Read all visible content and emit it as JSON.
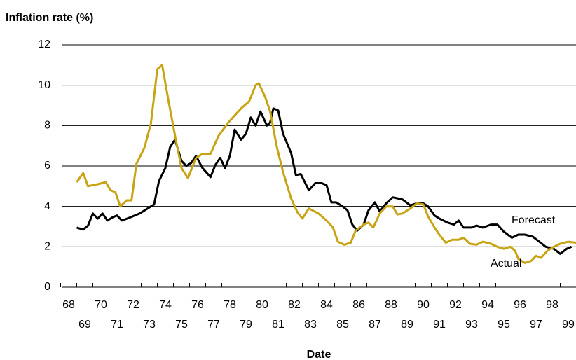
{
  "chart_data": {
    "type": "line",
    "title": "Inflation rate (%)",
    "x_label": "Date",
    "xlim": [
      68,
      100
    ],
    "ylim": [
      0,
      12
    ],
    "xticks": [
      68,
      69,
      70,
      71,
      72,
      73,
      74,
      75,
      76,
      77,
      78,
      79,
      80,
      81,
      82,
      83,
      84,
      85,
      86,
      87,
      88,
      89,
      90,
      91,
      92,
      93,
      94,
      95,
      96,
      97,
      98,
      99
    ],
    "yticks": [
      0,
      2,
      4,
      6,
      8,
      10,
      12
    ],
    "grid": true,
    "series": [
      {
        "name": "Forecast",
        "color": "#000000",
        "x": [
          69.0,
          69.4,
          69.7,
          70.0,
          70.3,
          70.6,
          70.9,
          71.2,
          71.5,
          71.8,
          72.3,
          72.9,
          73.4,
          73.8,
          74.1,
          74.5,
          74.8,
          75.1,
          75.5,
          75.8,
          76.1,
          76.4,
          76.8,
          77.3,
          77.6,
          77.9,
          78.2,
          78.5,
          78.8,
          79.2,
          79.5,
          79.8,
          80.1,
          80.4,
          80.8,
          81.0,
          81.2,
          81.5,
          81.8,
          82.3,
          82.6,
          82.9,
          83.4,
          83.8,
          84.2,
          84.5,
          84.8,
          85.1,
          85.5,
          85.8,
          86.1,
          86.4,
          86.8,
          87.1,
          87.5,
          87.8,
          88.2,
          88.6,
          88.9,
          89.2,
          89.7,
          90.1,
          90.5,
          90.8,
          91.2,
          91.5,
          92.0,
          92.4,
          92.7,
          93.0,
          93.5,
          93.8,
          94.2,
          94.7,
          95.1,
          95.5,
          96.0,
          96.4,
          96.8,
          97.3,
          97.7,
          98.1,
          98.6,
          99.0,
          99.4,
          99.7
        ],
        "values": [
          2.95,
          2.85,
          3.05,
          3.65,
          3.4,
          3.65,
          3.3,
          3.45,
          3.55,
          3.3,
          3.45,
          3.65,
          3.9,
          4.1,
          5.25,
          5.9,
          6.95,
          7.3,
          6.25,
          6.0,
          6.15,
          6.5,
          5.9,
          5.45,
          6.05,
          6.4,
          5.9,
          6.5,
          7.8,
          7.3,
          7.6,
          8.4,
          8.0,
          8.7,
          8.0,
          8.15,
          8.85,
          8.75,
          7.6,
          6.65,
          5.55,
          5.6,
          4.8,
          5.15,
          5.15,
          5.05,
          4.2,
          4.2,
          4.0,
          3.8,
          3.1,
          2.8,
          3.1,
          3.8,
          4.2,
          3.75,
          4.15,
          4.45,
          4.4,
          4.35,
          4.05,
          4.15,
          4.15,
          4.0,
          3.55,
          3.4,
          3.2,
          3.1,
          3.3,
          2.95,
          2.95,
          3.05,
          2.95,
          3.1,
          3.1,
          2.75,
          2.45,
          2.6,
          2.6,
          2.5,
          2.25,
          2.0,
          1.9,
          1.65,
          1.9,
          2.0
        ]
      },
      {
        "name": "Actual",
        "color": "#c8a415",
        "x": [
          69.0,
          69.4,
          69.7,
          70.3,
          70.8,
          71.1,
          71.4,
          71.7,
          72.1,
          72.4,
          72.7,
          73.2,
          73.6,
          74.0,
          74.3,
          74.7,
          75.1,
          75.5,
          75.9,
          76.4,
          76.8,
          77.3,
          77.8,
          78.4,
          78.8,
          79.2,
          79.7,
          80.1,
          80.3,
          80.7,
          81.0,
          81.4,
          81.8,
          82.3,
          82.7,
          83.0,
          83.4,
          84.0,
          84.5,
          84.9,
          85.2,
          85.6,
          86.0,
          86.3,
          86.8,
          87.1,
          87.4,
          87.8,
          88.2,
          88.6,
          88.9,
          89.2,
          89.7,
          90.1,
          90.5,
          90.8,
          91.2,
          91.5,
          91.9,
          92.3,
          92.7,
          93.0,
          93.4,
          93.8,
          94.2,
          94.7,
          95.1,
          95.5,
          95.9,
          96.2,
          96.4,
          96.8,
          97.2,
          97.5,
          97.8,
          98.2,
          98.6,
          99.0,
          99.5,
          100.0
        ],
        "values": [
          5.2,
          5.65,
          5.0,
          5.1,
          5.2,
          4.8,
          4.7,
          4.0,
          4.3,
          4.3,
          6.1,
          6.9,
          8.1,
          10.8,
          11.0,
          9.2,
          7.5,
          5.9,
          5.4,
          6.4,
          6.6,
          6.6,
          7.5,
          8.15,
          8.5,
          8.85,
          9.2,
          10.0,
          10.1,
          9.4,
          8.7,
          7.0,
          5.7,
          4.4,
          3.7,
          3.4,
          3.9,
          3.65,
          3.3,
          2.95,
          2.25,
          2.1,
          2.2,
          2.8,
          3.1,
          3.2,
          2.95,
          3.65,
          4.0,
          4.0,
          3.6,
          3.65,
          3.9,
          4.15,
          4.1,
          3.5,
          2.95,
          2.6,
          2.2,
          2.35,
          2.35,
          2.45,
          2.15,
          2.1,
          2.25,
          2.15,
          2.0,
          1.9,
          2.0,
          1.8,
          1.4,
          1.2,
          1.3,
          1.55,
          1.45,
          1.8,
          2.0,
          2.15,
          2.25,
          2.2
        ]
      }
    ]
  }
}
